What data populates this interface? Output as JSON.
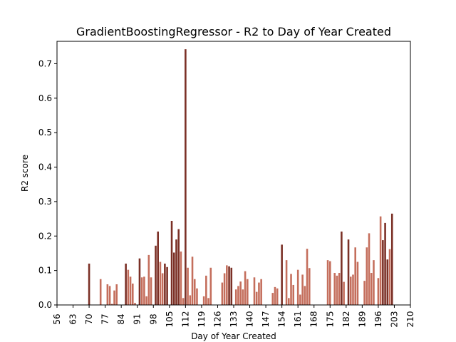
{
  "chart_data": {
    "type": "bar",
    "title": "GradientBoostingRegressor - R2 to Day of Year Created",
    "xlabel": "Day of Year Created",
    "ylabel": "R2 score",
    "xlim": [
      56,
      210
    ],
    "ylim": [
      0,
      0.765
    ],
    "xticks": [
      56,
      63,
      70,
      77,
      84,
      91,
      98,
      105,
      112,
      119,
      126,
      133,
      140,
      147,
      154,
      161,
      168,
      175,
      182,
      189,
      196,
      203,
      210
    ],
    "yticks": [
      0.0,
      0.1,
      0.2,
      0.3,
      0.4,
      0.5,
      0.6,
      0.7
    ],
    "grid": false,
    "colors": {
      "dark": "#7b3026",
      "light": "#c46e5c"
    },
    "bars": [
      {
        "x": 70,
        "y": 0.12,
        "tone": "dark"
      },
      {
        "x": 75,
        "y": 0.075,
        "tone": "light"
      },
      {
        "x": 78,
        "y": 0.06,
        "tone": "light"
      },
      {
        "x": 79,
        "y": 0.055,
        "tone": "light"
      },
      {
        "x": 80,
        "y": 0.003,
        "tone": "light"
      },
      {
        "x": 81,
        "y": 0.042,
        "tone": "light"
      },
      {
        "x": 82,
        "y": 0.06,
        "tone": "light"
      },
      {
        "x": 86,
        "y": 0.12,
        "tone": "dark"
      },
      {
        "x": 87,
        "y": 0.102,
        "tone": "light"
      },
      {
        "x": 88,
        "y": 0.082,
        "tone": "light"
      },
      {
        "x": 89,
        "y": 0.062,
        "tone": "light"
      },
      {
        "x": 90,
        "y": 0.006,
        "tone": "light"
      },
      {
        "x": 92,
        "y": 0.135,
        "tone": "dark"
      },
      {
        "x": 93,
        "y": 0.08,
        "tone": "light"
      },
      {
        "x": 94,
        "y": 0.082,
        "tone": "light"
      },
      {
        "x": 95,
        "y": 0.025,
        "tone": "light"
      },
      {
        "x": 96,
        "y": 0.145,
        "tone": "light"
      },
      {
        "x": 97,
        "y": 0.08,
        "tone": "light"
      },
      {
        "x": 99,
        "y": 0.172,
        "tone": "dark"
      },
      {
        "x": 100,
        "y": 0.213,
        "tone": "dark"
      },
      {
        "x": 101,
        "y": 0.125,
        "tone": "light"
      },
      {
        "x": 102,
        "y": 0.092,
        "tone": "light"
      },
      {
        "x": 103,
        "y": 0.12,
        "tone": "dark"
      },
      {
        "x": 104,
        "y": 0.11,
        "tone": "dark"
      },
      {
        "x": 106,
        "y": 0.244,
        "tone": "dark"
      },
      {
        "x": 107,
        "y": 0.152,
        "tone": "dark"
      },
      {
        "x": 108,
        "y": 0.19,
        "tone": "dark"
      },
      {
        "x": 109,
        "y": 0.22,
        "tone": "dark"
      },
      {
        "x": 110,
        "y": 0.155,
        "tone": "light"
      },
      {
        "x": 111,
        "y": 0.02,
        "tone": "light"
      },
      {
        "x": 112,
        "y": 0.742,
        "tone": "dark"
      },
      {
        "x": 113,
        "y": 0.108,
        "tone": "light"
      },
      {
        "x": 114,
        "y": 0.028,
        "tone": "light"
      },
      {
        "x": 115,
        "y": 0.14,
        "tone": "light"
      },
      {
        "x": 116,
        "y": 0.075,
        "tone": "light"
      },
      {
        "x": 117,
        "y": 0.048,
        "tone": "light"
      },
      {
        "x": 120,
        "y": 0.025,
        "tone": "light"
      },
      {
        "x": 121,
        "y": 0.085,
        "tone": "light"
      },
      {
        "x": 122,
        "y": 0.02,
        "tone": "light"
      },
      {
        "x": 123,
        "y": 0.108,
        "tone": "light"
      },
      {
        "x": 128,
        "y": 0.065,
        "tone": "light"
      },
      {
        "x": 129,
        "y": 0.092,
        "tone": "light"
      },
      {
        "x": 130,
        "y": 0.115,
        "tone": "light"
      },
      {
        "x": 131,
        "y": 0.112,
        "tone": "dark"
      },
      {
        "x": 132,
        "y": 0.108,
        "tone": "dark"
      },
      {
        "x": 134,
        "y": 0.045,
        "tone": "light"
      },
      {
        "x": 135,
        "y": 0.055,
        "tone": "light"
      },
      {
        "x": 136,
        "y": 0.068,
        "tone": "light"
      },
      {
        "x": 137,
        "y": 0.045,
        "tone": "light"
      },
      {
        "x": 138,
        "y": 0.098,
        "tone": "light"
      },
      {
        "x": 139,
        "y": 0.075,
        "tone": "light"
      },
      {
        "x": 142,
        "y": 0.08,
        "tone": "light"
      },
      {
        "x": 143,
        "y": 0.038,
        "tone": "light"
      },
      {
        "x": 144,
        "y": 0.065,
        "tone": "light"
      },
      {
        "x": 145,
        "y": 0.075,
        "tone": "light"
      },
      {
        "x": 150,
        "y": 0.035,
        "tone": "light"
      },
      {
        "x": 151,
        "y": 0.052,
        "tone": "light"
      },
      {
        "x": 152,
        "y": 0.048,
        "tone": "light"
      },
      {
        "x": 154,
        "y": 0.175,
        "tone": "dark"
      },
      {
        "x": 156,
        "y": 0.13,
        "tone": "light"
      },
      {
        "x": 157,
        "y": 0.02,
        "tone": "light"
      },
      {
        "x": 158,
        "y": 0.09,
        "tone": "light"
      },
      {
        "x": 159,
        "y": 0.058,
        "tone": "light"
      },
      {
        "x": 161,
        "y": 0.102,
        "tone": "light"
      },
      {
        "x": 162,
        "y": 0.03,
        "tone": "light"
      },
      {
        "x": 163,
        "y": 0.088,
        "tone": "light"
      },
      {
        "x": 164,
        "y": 0.055,
        "tone": "light"
      },
      {
        "x": 165,
        "y": 0.163,
        "tone": "light"
      },
      {
        "x": 166,
        "y": 0.107,
        "tone": "light"
      },
      {
        "x": 174,
        "y": 0.13,
        "tone": "light"
      },
      {
        "x": 175,
        "y": 0.127,
        "tone": "light"
      },
      {
        "x": 177,
        "y": 0.093,
        "tone": "light"
      },
      {
        "x": 178,
        "y": 0.085,
        "tone": "light"
      },
      {
        "x": 179,
        "y": 0.093,
        "tone": "light"
      },
      {
        "x": 180,
        "y": 0.213,
        "tone": "dark"
      },
      {
        "x": 181,
        "y": 0.067,
        "tone": "light"
      },
      {
        "x": 183,
        "y": 0.19,
        "tone": "dark"
      },
      {
        "x": 184,
        "y": 0.082,
        "tone": "light"
      },
      {
        "x": 185,
        "y": 0.088,
        "tone": "light"
      },
      {
        "x": 186,
        "y": 0.167,
        "tone": "light"
      },
      {
        "x": 187,
        "y": 0.125,
        "tone": "light"
      },
      {
        "x": 190,
        "y": 0.07,
        "tone": "light"
      },
      {
        "x": 191,
        "y": 0.167,
        "tone": "light"
      },
      {
        "x": 192,
        "y": 0.208,
        "tone": "light"
      },
      {
        "x": 193,
        "y": 0.093,
        "tone": "light"
      },
      {
        "x": 194,
        "y": 0.13,
        "tone": "light"
      },
      {
        "x": 196,
        "y": 0.078,
        "tone": "light"
      },
      {
        "x": 197,
        "y": 0.257,
        "tone": "light"
      },
      {
        "x": 198,
        "y": 0.188,
        "tone": "dark"
      },
      {
        "x": 199,
        "y": 0.238,
        "tone": "dark"
      },
      {
        "x": 200,
        "y": 0.132,
        "tone": "dark"
      },
      {
        "x": 201,
        "y": 0.162,
        "tone": "light"
      },
      {
        "x": 202,
        "y": 0.265,
        "tone": "dark"
      }
    ]
  }
}
